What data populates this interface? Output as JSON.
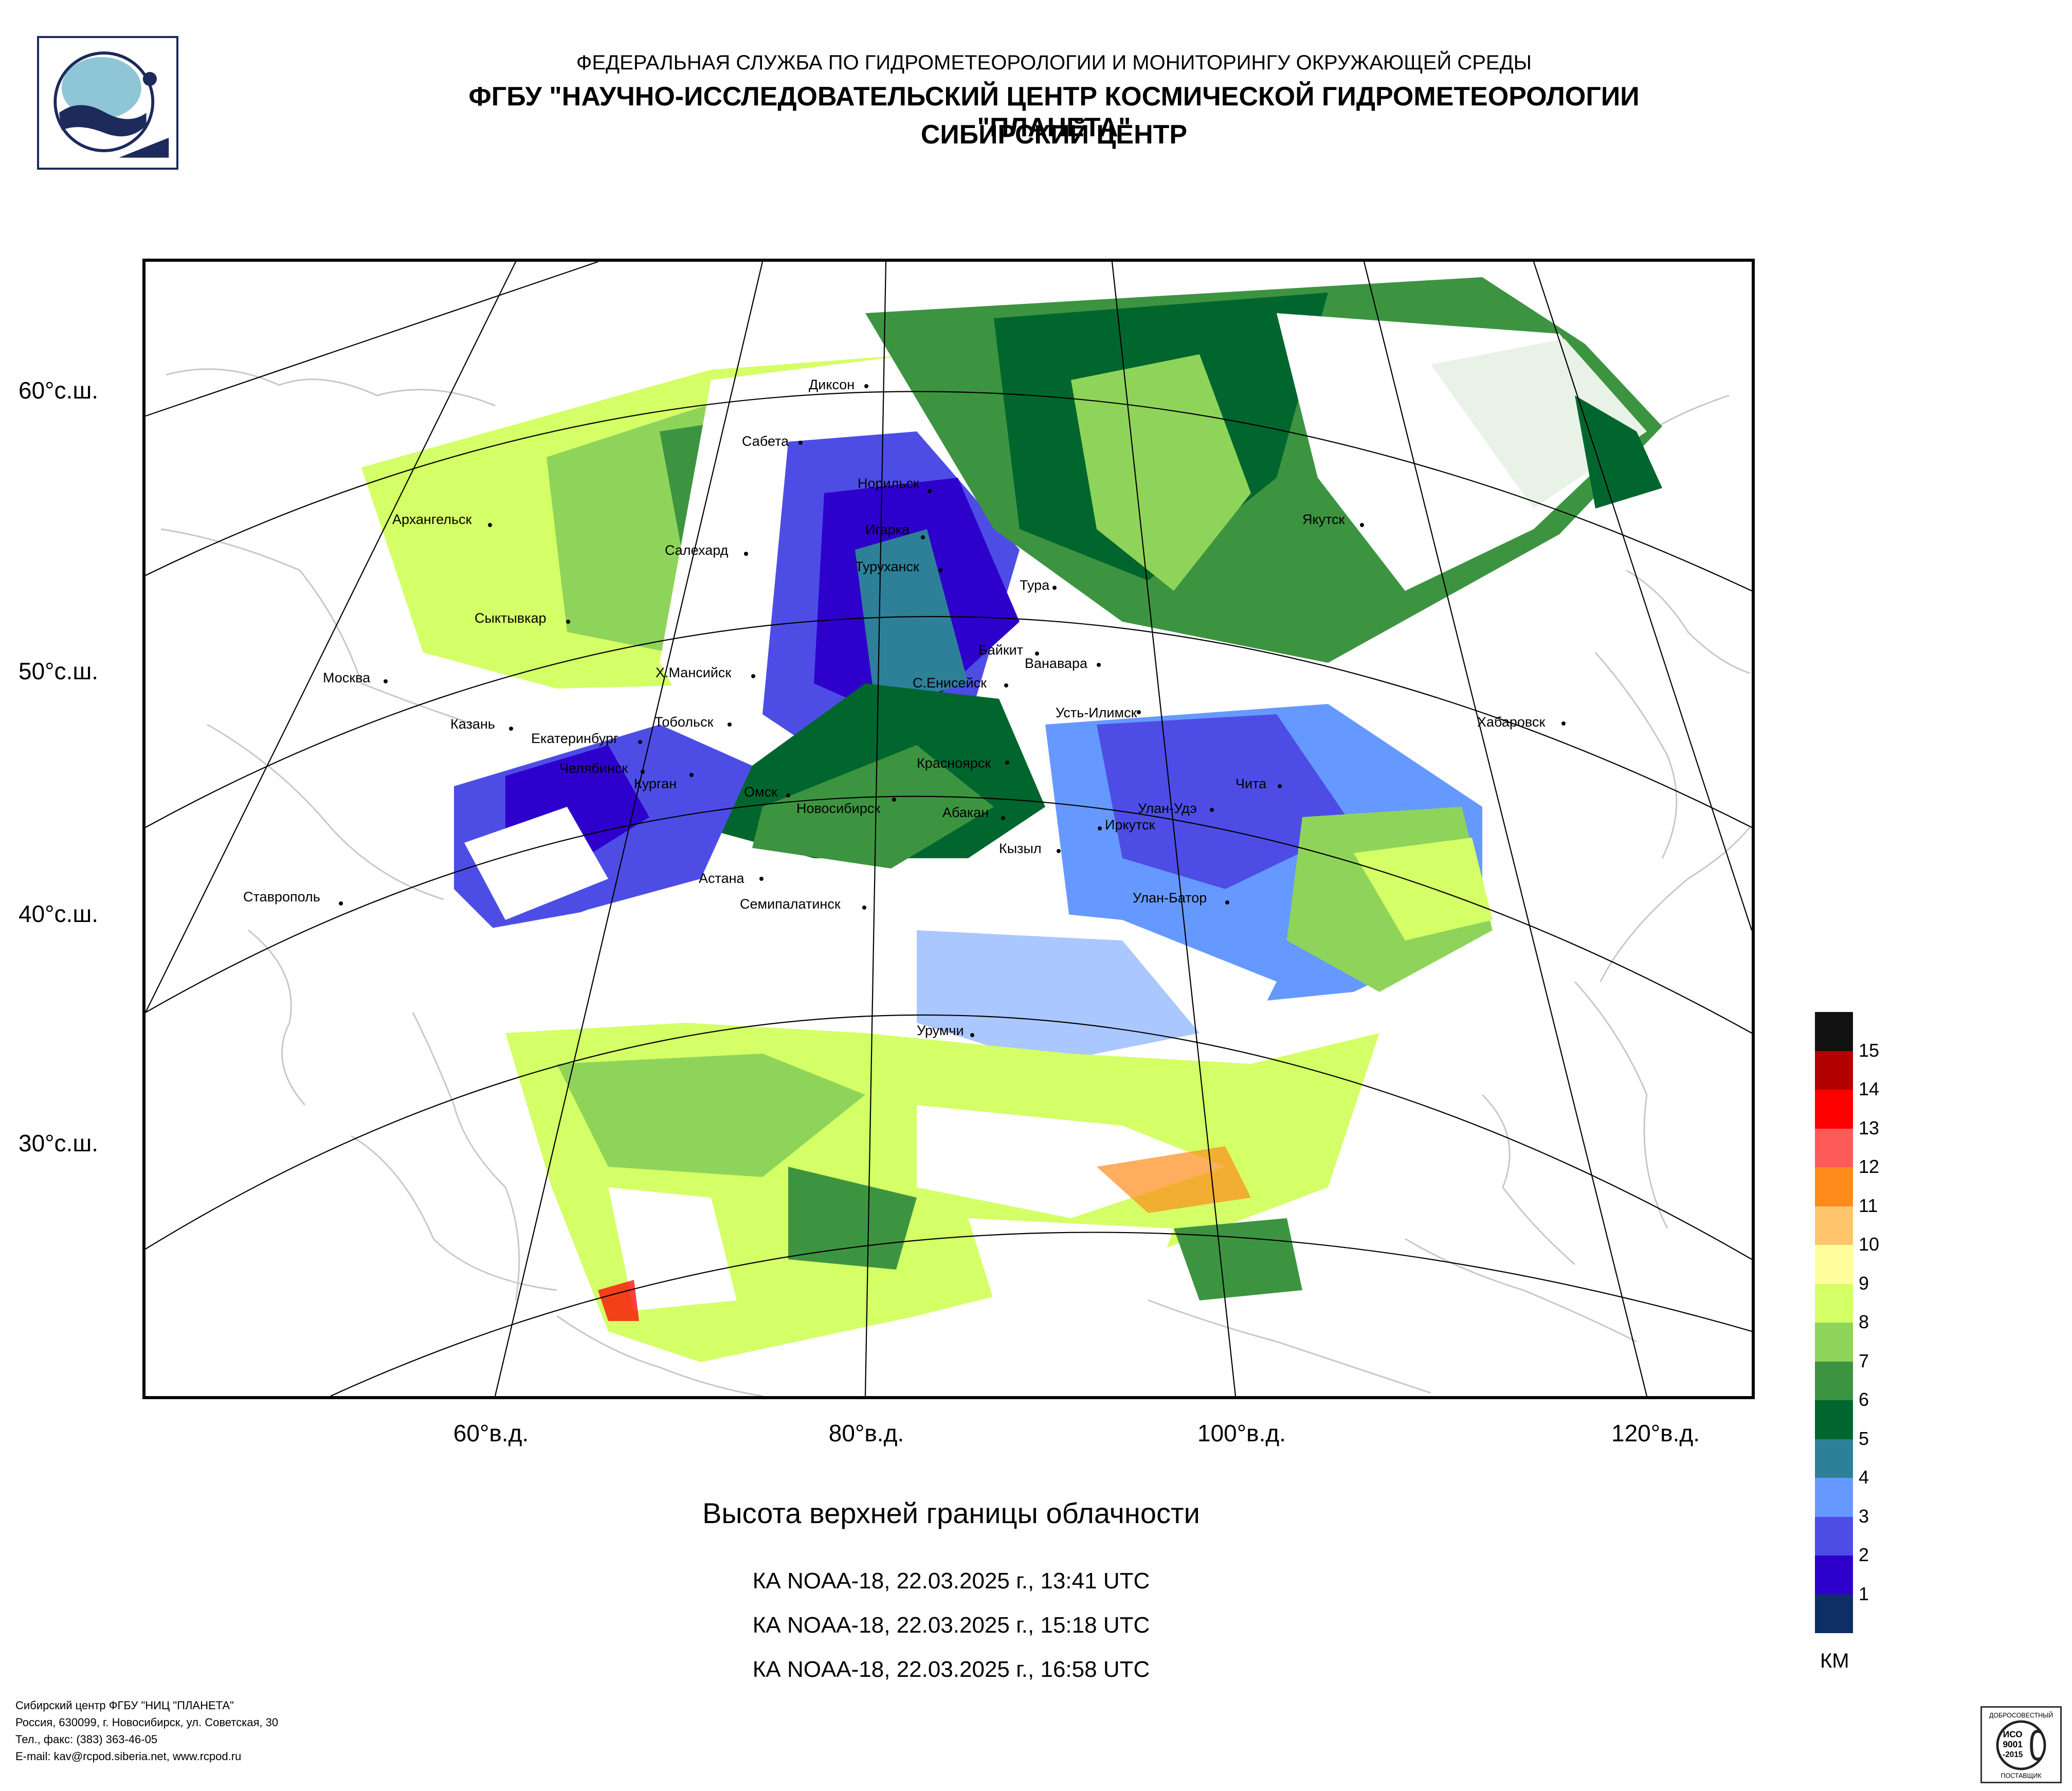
{
  "header": {
    "line1": "ФЕДЕРАЛЬНАЯ СЛУЖБА ПО ГИДРОМЕТЕОРОЛОГИИ И МОНИТОРИНГУ ОКРУЖАЮЩЕЙ СРЕДЫ",
    "line2": "ФГБУ \"НАУЧНО-ИССЛЕДОВАТЕЛЬСКИЙ ЦЕНТР КОСМИЧЕСКОЙ ГИДРОМЕТЕОРОЛОГИИ \"ПЛАНЕТА\"",
    "line3": "СИБИРСКИЙ ЦЕНТР"
  },
  "logo": {
    "icon": "planeta-logo-icon"
  },
  "map": {
    "lat_labels": [
      "60°с.ш.",
      "50°с.ш.",
      "40°с.ш.",
      "30°с.ш."
    ],
    "lon_labels": [
      "60°в.д.",
      "80°в.д.",
      "100°в.д.",
      "120°в.д."
    ],
    "cities": [
      "Диксон",
      "Сабета",
      "Норильск",
      "Игарка",
      "Архангельск",
      "Салехард",
      "Туруханск",
      "Тура",
      "Якутск",
      "Сыктывкар",
      "Байкит",
      "Ванавара",
      "Москва",
      "Х.Мансийск",
      "С.Енисейск",
      "Усть-Илимск",
      "Казань",
      "Тобольск",
      "Хабаровск",
      "Екатеринбург",
      "Челябинск",
      "Курган",
      "Красноярск",
      "Омск",
      "Новосибирск",
      "Абакан",
      "Улан-Удэ",
      "Чита",
      "Иркутск",
      "Кызыл",
      "Астана",
      "Ставрополь",
      "Семипалатинск",
      "Улан-Батор",
      "Урумчи"
    ],
    "colors": {
      "land_line": "#c8c8c8",
      "grid_line": "#000000",
      "frame": "#000000"
    }
  },
  "title": "Высота верхней границы облачности",
  "passes": [
    "КА NOAA-18, 22.03.2025 г., 13:41 UTC",
    "КА NOAA-18, 22.03.2025 г., 15:18 UTC",
    "КА NOAA-18, 22.03.2025 г., 16:58 UTC"
  ],
  "legend": {
    "unit": "КМ",
    "levels": [
      "15",
      "14",
      "13",
      "12",
      "11",
      "10",
      "9",
      "8",
      "7",
      "6",
      "5",
      "4",
      "3",
      "2",
      "1"
    ],
    "colors": [
      "#111111",
      "#b30000",
      "#ff0000",
      "#ff5a5a",
      "#ff8c1a",
      "#ffc66e",
      "#ffff9e",
      "#d4ff66",
      "#8fd45a",
      "#3d9440",
      "#00662e",
      "#2e8099",
      "#6699ff",
      "#4d4de6",
      "#2e00cc",
      "#0d2e66"
    ]
  },
  "footer": [
    "Сибирский центр ФГБУ \"НИЦ \"ПЛАНЕТА\"",
    "Россия, 630099, г. Новосибирск, ул. Советская, 30",
    "Тел., факс: (383) 363-46-05",
    "E-mail: kav@rcpod.siberia.net, www.rcpod.ru"
  ],
  "iso_badge": {
    "top": "ДОБРОСОВЕСТНЫЙ",
    "line1": "ИСО",
    "line2": "9001",
    "line3": "-2015",
    "bottom": "ПОСТАВЩИК"
  }
}
